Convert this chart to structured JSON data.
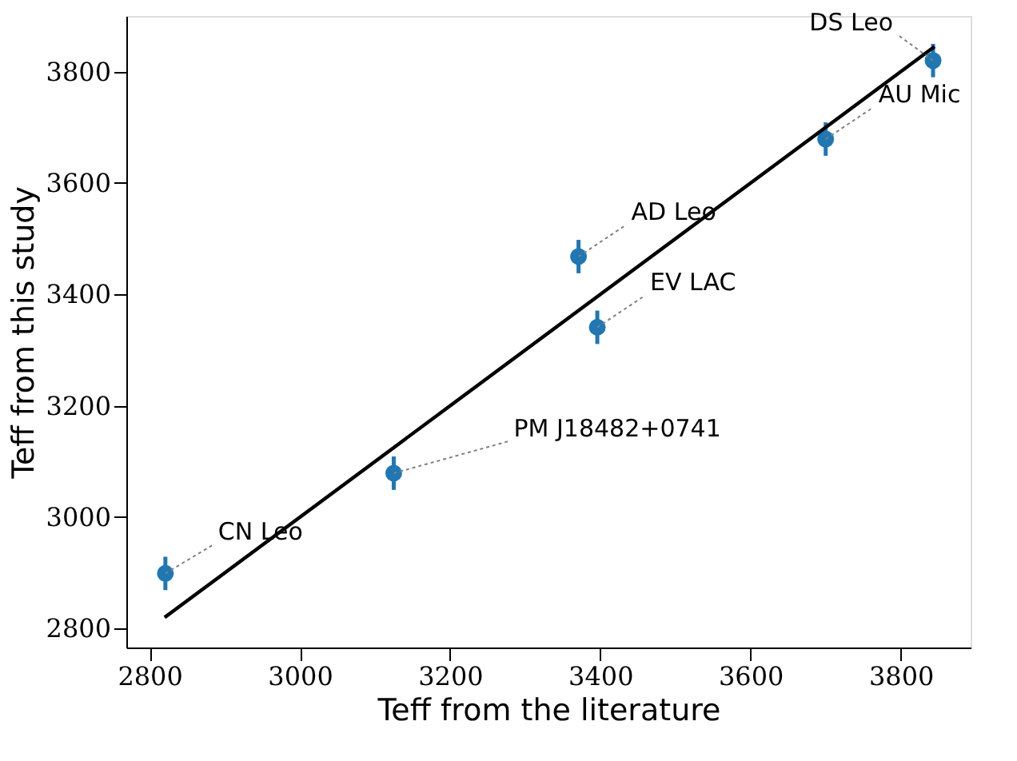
{
  "chart_data": {
    "type": "scatter",
    "xlabel": "Teff from the literature",
    "ylabel": "Teff from this study",
    "x": [
      2821,
      3125,
      3371,
      3396,
      3700,
      3843
    ],
    "series": [
      {
        "color": "#1f77b4",
        "marker": "circle",
        "values": [
          2899,
          3079,
          3468,
          3341,
          3679,
          3820
        ],
        "errors": [
          30,
          30,
          30,
          30,
          30,
          30
        ]
      },
      {
        "type": "line",
        "color": "#000000",
        "marker": "none",
        "line_style": "solid",
        "x": [
          2820,
          3845
        ],
        "values": [
          2820,
          3845
        ]
      }
    ],
    "annotations": [
      {
        "text": "CN Leo",
        "x": 2821,
        "y": 2899
      },
      {
        "text": "PM J18482+0741",
        "x": 3125,
        "y": 3079
      },
      {
        "text": "AD Leo",
        "x": 3371,
        "y": 3468
      },
      {
        "text": "EV LAC",
        "x": 3396,
        "y": 3341
      },
      {
        "text": "AU Mic",
        "x": 3700,
        "y": 3679
      },
      {
        "text": "DS Leo",
        "x": 3843,
        "y": 3820
      }
    ],
    "xlim": [
      2769,
      3893
    ],
    "ylim": [
      2766,
      3900
    ],
    "xticks": [
      2800,
      3000,
      3200,
      3400,
      3600,
      3800
    ],
    "yticks": [
      2800,
      3000,
      3200,
      3400,
      3600,
      3800
    ],
    "grid": false
  }
}
